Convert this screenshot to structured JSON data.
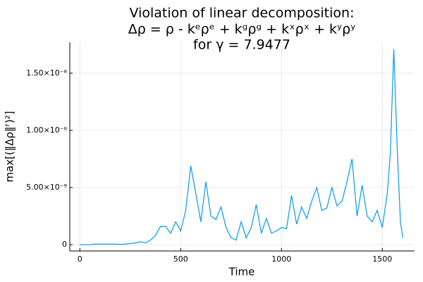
{
  "chart_data": {
    "type": "line",
    "title": [
      "Violation of linear decomposition:",
      "Δρ = ρ - kᵉρᵉ + kᵍρᵍ + kˣρˣ + kʸρʸ",
      "for γ = 7.9477"
    ],
    "x_label": "Time",
    "y_label": "max[(‖Δρ‖ᶠ)²]",
    "x": [
      0,
      25,
      50,
      75,
      100,
      125,
      150,
      175,
      200,
      225,
      250,
      275,
      300,
      325,
      350,
      375,
      400,
      425,
      450,
      475,
      500,
      525,
      550,
      575,
      600,
      625,
      650,
      675,
      700,
      725,
      750,
      775,
      800,
      825,
      850,
      875,
      900,
      925,
      950,
      975,
      1000,
      1025,
      1050,
      1075,
      1100,
      1125,
      1150,
      1175,
      1200,
      1225,
      1250,
      1275,
      1300,
      1325,
      1350,
      1375,
      1400,
      1425,
      1450,
      1475,
      1500,
      1525,
      1540,
      1557,
      1575,
      1590,
      1602
    ],
    "series": [
      {
        "name": "y1",
        "color": "#009af9",
        "values": [
          0,
          0,
          0,
          5e-11,
          5e-11,
          5e-11,
          5e-11,
          5e-11,
          2e-11,
          5e-11,
          1e-10,
          1.5e-10,
          2.5e-10,
          1.5e-10,
          4e-10,
          8e-10,
          1.6e-09,
          1.6e-09,
          1e-09,
          2e-09,
          1.2e-09,
          3e-09,
          6.9e-09,
          4.5e-09,
          2e-09,
          5.5e-09,
          2.5e-09,
          2.2e-09,
          3.3e-09,
          1.5e-09,
          6e-10,
          4e-10,
          2e-09,
          6e-10,
          1.5e-09,
          3.5e-09,
          1e-09,
          2.3e-09,
          1e-09,
          1.2e-09,
          1.5e-09,
          1.4e-09,
          4.3e-09,
          1.8e-09,
          3.3e-09,
          2.3e-09,
          3.8e-09,
          5e-09,
          3e-09,
          3.2e-09,
          5e-09,
          3.4e-09,
          3.8e-09,
          5.5e-09,
          7.5e-09,
          2.5e-09,
          5.2e-09,
          2.5e-09,
          2e-09,
          3e-09,
          1.5e-09,
          4.5e-09,
          8e-09,
          1.71e-08,
          8e-09,
          2e-09,
          6e-10
        ]
      }
    ],
    "xlim": [
      -50,
      1660
    ],
    "xticks": [
      0,
      500,
      1000,
      1500
    ],
    "ylim": [
      -5.5e-10,
      1.77e-08
    ],
    "yticks": [
      0,
      {
        "value": 5e-09,
        "label": "5.00×10⁻⁹"
      },
      {
        "value": 1e-08,
        "label": "1.00×10⁻⁸"
      },
      {
        "value": 1.5e-08,
        "label": "1.50×10⁻⁸"
      }
    ],
    "grid": true
  }
}
